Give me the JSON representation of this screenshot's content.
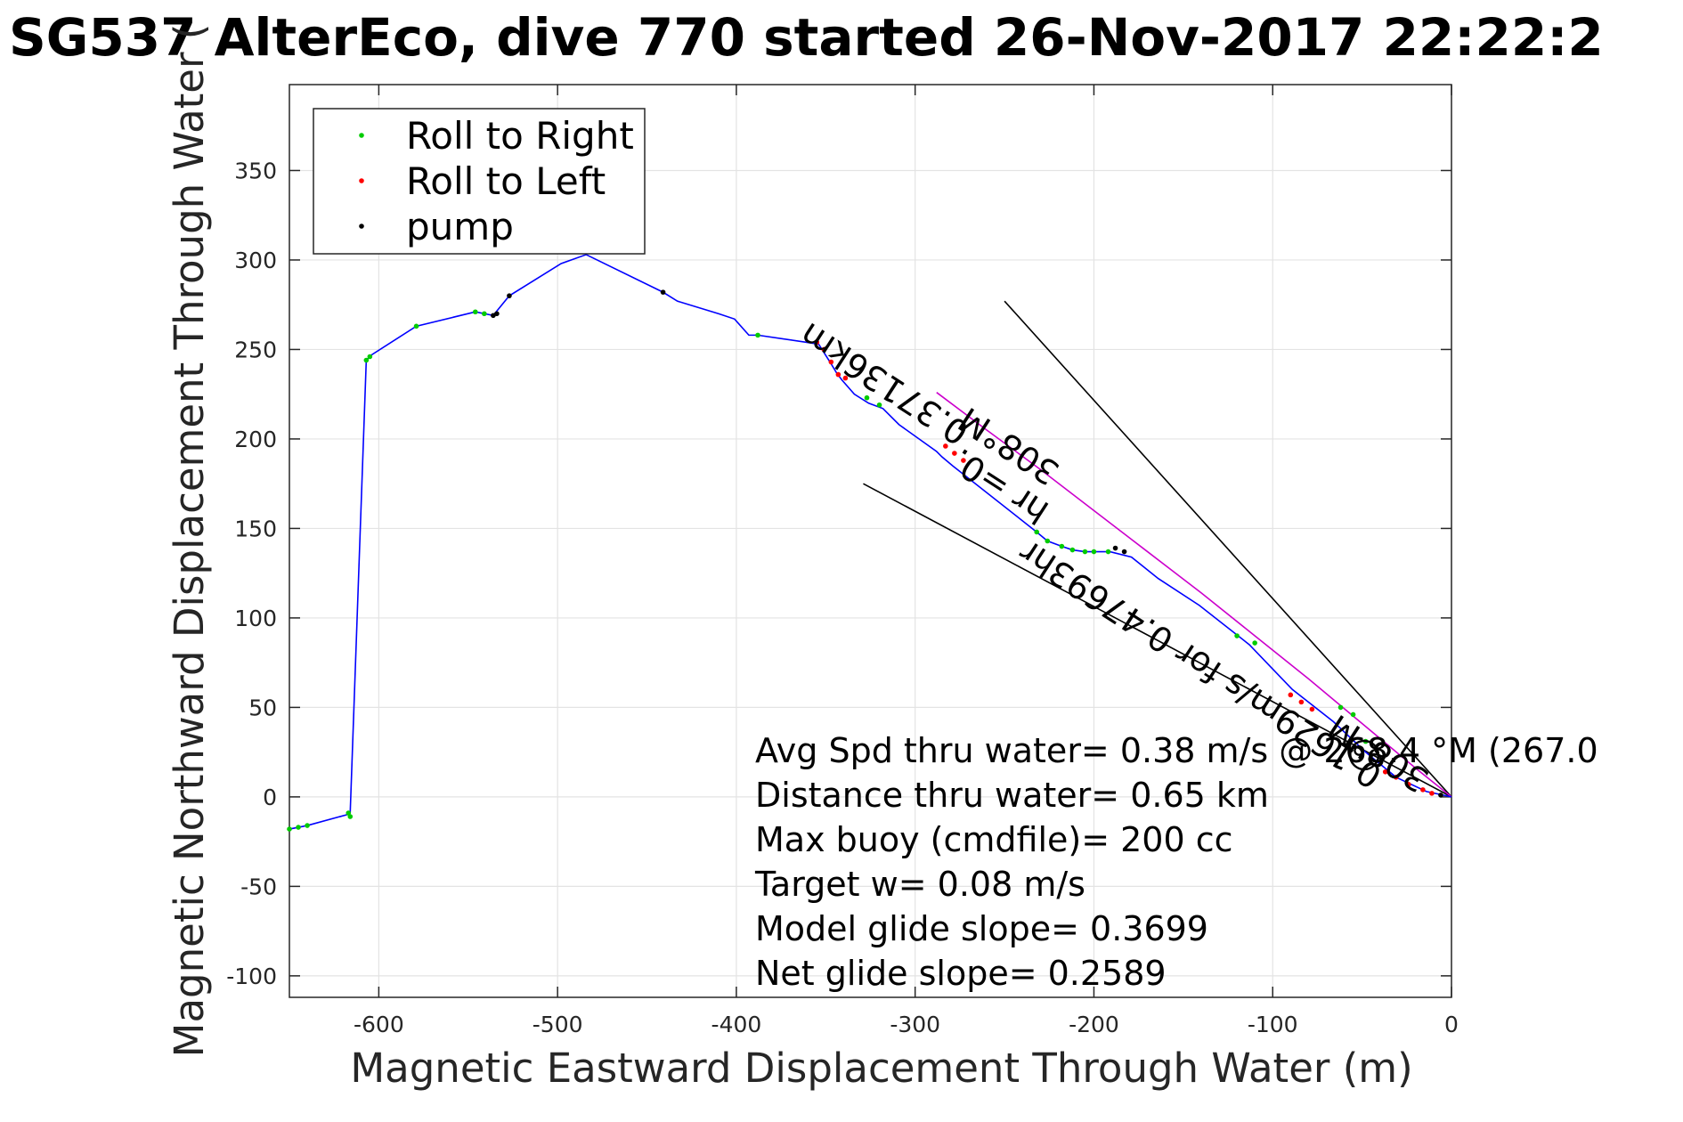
{
  "chart_data": {
    "type": "line",
    "title": "SG537 AlterEco, dive 770 started 26-Nov-2017 22:22:2",
    "xlabel": "Magnetic Eastward Displacement Through Water (m)",
    "ylabel": "Magnetic Northward Displacement Through Water (",
    "xlim": [
      -650,
      0
    ],
    "ylim": [
      -112,
      398
    ],
    "xticks": [
      -600,
      -500,
      -400,
      -300,
      -200,
      -100,
      0
    ],
    "yticks": [
      -100,
      -50,
      0,
      50,
      100,
      150,
      200,
      250,
      300,
      350
    ],
    "grid": true,
    "legend_position": "top-left",
    "colors": {
      "track": "#0000ff",
      "roll_right": "#00cc00",
      "roll_left": "#ff0000",
      "pump": "#000000",
      "heading_line": "#cc00cc",
      "wedge": "#000000"
    },
    "legend": [
      {
        "label": "Roll to Right",
        "color": "#00cc00"
      },
      {
        "label": "Roll to Left",
        "color": "#ff0000"
      },
      {
        "label": "pump",
        "color": "#000000"
      }
    ],
    "track": {
      "x": [
        -650,
        -640,
        -618,
        -616,
        -607,
        -604,
        -579,
        -546,
        -536,
        -527,
        -498,
        -484,
        -441,
        -433,
        -410,
        -401,
        -393,
        -388,
        -354,
        -347,
        -344,
        -341,
        -334,
        -326,
        -318,
        -309,
        -288,
        -285,
        -279,
        -232,
        -226,
        -218,
        -212,
        -205,
        -200,
        -191,
        -179,
        -164,
        -141,
        -113,
        -89,
        -66,
        -48,
        -31,
        -14,
        0
      ],
      "y": [
        -18,
        -16,
        -10,
        -9,
        244,
        247,
        263,
        271,
        269,
        280,
        298,
        303,
        282,
        277,
        270,
        267,
        258,
        258,
        253,
        242,
        237,
        233,
        225,
        220,
        217,
        208,
        193,
        190,
        185,
        148,
        143,
        140,
        138,
        137,
        137,
        137,
        134,
        122,
        107,
        85,
        60,
        42,
        25,
        11,
        3,
        0
      ]
    },
    "roll_right": {
      "x": [
        -650,
        -645,
        -640,
        -617,
        -616,
        -607,
        -605,
        -579,
        -546,
        -541,
        -388,
        -327,
        -320,
        -232,
        -226,
        -218,
        -212,
        -205,
        -200,
        -192,
        -120,
        -110,
        -62,
        -55,
        -48
      ],
      "y": [
        -18,
        -17,
        -16,
        -9,
        -11,
        244,
        246,
        263,
        271,
        270,
        258,
        223,
        219,
        148,
        143,
        140,
        138,
        137,
        137,
        137,
        90,
        86,
        50,
        46,
        31
      ]
    },
    "roll_left": {
      "x": [
        -355,
        -351,
        -347,
        -343,
        -339,
        -283,
        -278,
        -273,
        -90,
        -84,
        -78,
        -37,
        -31,
        -24,
        -16,
        -11
      ],
      "y": [
        254,
        250,
        243,
        236,
        234,
        196,
        192,
        188,
        57,
        53,
        49,
        14,
        11,
        7,
        4,
        2
      ]
    },
    "pump": {
      "x": [
        -536,
        -534,
        -527,
        -441,
        -188,
        -183,
        -6
      ],
      "y": [
        269,
        270,
        280,
        282,
        139,
        137,
        1
      ]
    },
    "heading_line": {
      "x": [
        -288,
        -260,
        -230,
        -200,
        -170,
        -140,
        -110,
        -80,
        -50,
        -20,
        0
      ],
      "y": [
        226,
        205,
        183,
        160,
        137,
        114,
        90,
        66,
        41,
        16,
        0
      ]
    },
    "wedge_lines": [
      {
        "x": [
          0,
          -250
        ],
        "y": [
          0,
          277
        ]
      },
      {
        "x": [
          0,
          -329
        ],
        "y": [
          0,
          175
        ]
      }
    ],
    "annotations": [
      {
        "text": "0.3713 6km",
        "display": "0.37136km"
      },
      {
        "text": "308°M"
      },
      {
        "text": "hr =0.37136km"
      },
      {
        "text": "0.1629m/s for 0.47693hr"
      },
      {
        "text": "308°M"
      }
    ],
    "stats": [
      "Avg Spd thru water=  0.38 m/s @ 268.4 °M (267.0",
      "Distance thru water=  0.65 km",
      "Max buoy (cmdfile)= 200 cc",
      "Target w= 0.08 m/s",
      "Model glide slope= 0.3699",
      "Net glide slope= 0.2589"
    ],
    "rotated_labels": {
      "upper": "308°M",
      "upper_km": "0.37136km",
      "hr": "hr =0.",
      "lower": "0.1629m/s for 0.47693hr",
      "lower_heading": "308°M"
    }
  }
}
